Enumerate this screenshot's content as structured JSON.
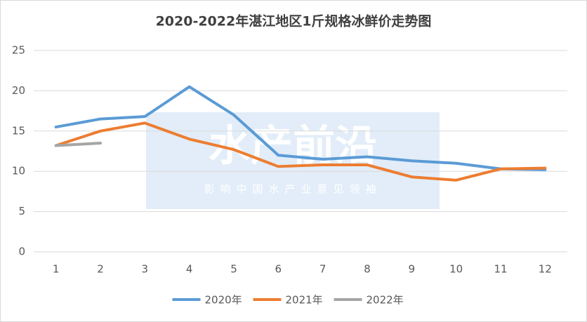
{
  "chart_data": {
    "type": "line",
    "title": "2020-2022年湛江地区1斤规格冰鲜价走势图",
    "categories": [
      "1",
      "2",
      "3",
      "4",
      "5",
      "6",
      "7",
      "8",
      "9",
      "10",
      "11",
      "12"
    ],
    "series": [
      {
        "name": "2020年",
        "color": "#5b9bd5",
        "values": [
          15.5,
          16.5,
          16.8,
          20.5,
          17,
          12,
          11.5,
          11.8,
          11.3,
          11,
          10.3,
          10.2
        ]
      },
      {
        "name": "2021年",
        "color": "#ed7d31",
        "values": [
          13.2,
          15,
          16,
          14,
          12.7,
          10.6,
          10.8,
          10.8,
          9.3,
          8.9,
          10.3,
          10.4
        ]
      },
      {
        "name": "2022年",
        "color": "#a5a5a5",
        "values": [
          13.2,
          13.5,
          null,
          null,
          null,
          null,
          null,
          null,
          null,
          null,
          null,
          null
        ]
      }
    ],
    "ylim": [
      0,
      25
    ],
    "yticks": [
      0,
      5,
      10,
      15,
      20,
      25
    ],
    "grid": true,
    "legend": "bottom",
    "watermark": {
      "title": "水产前沿",
      "subtitle": "影响中国水产业意见领袖"
    }
  }
}
